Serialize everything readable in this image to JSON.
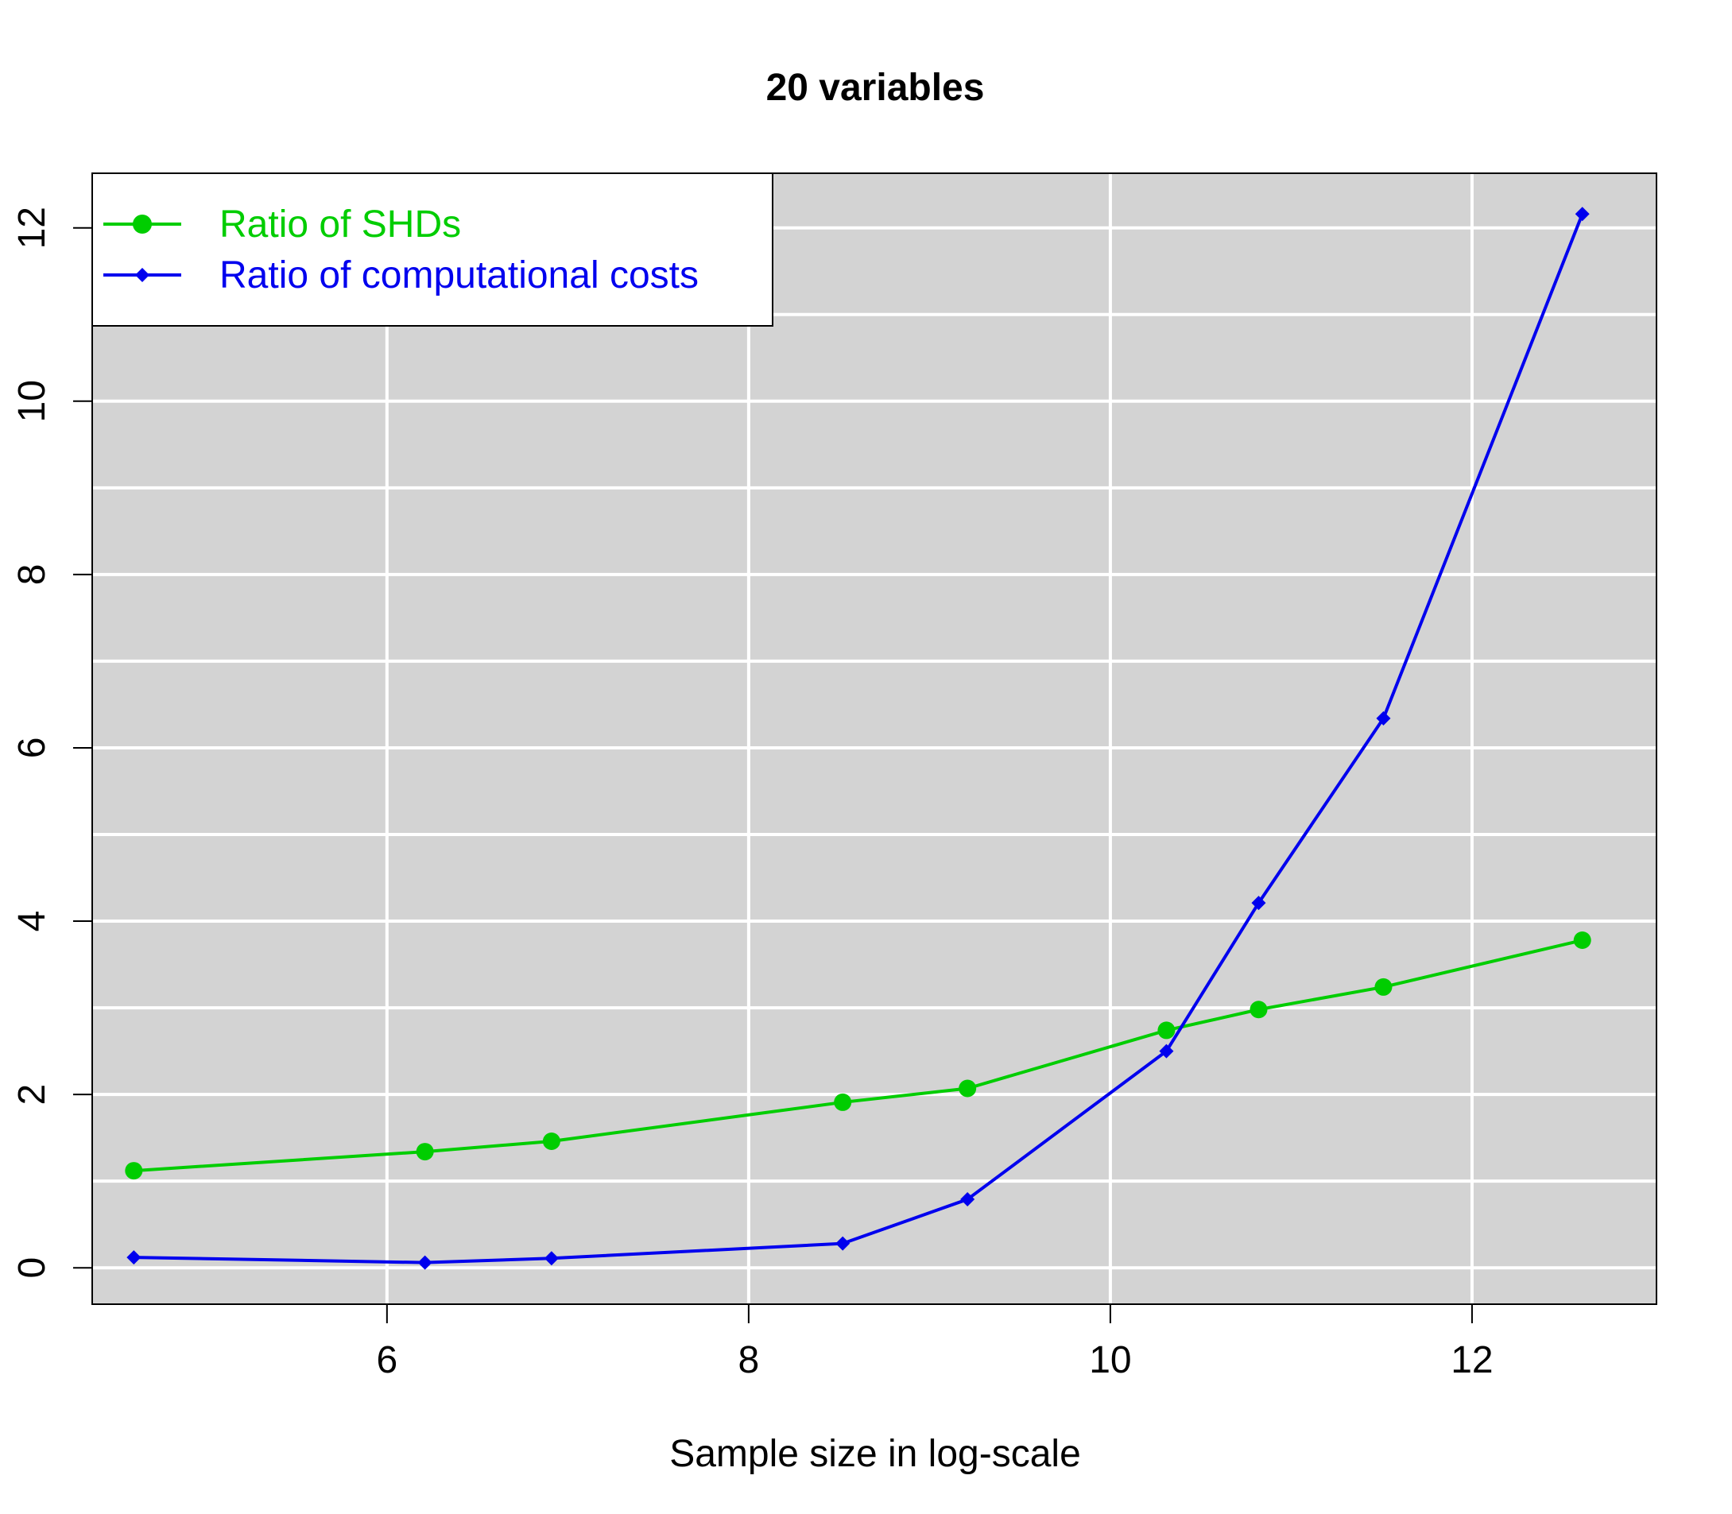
{
  "chart_data": {
    "type": "line",
    "title": "20 variables",
    "xlabel": "Sample size in log-scale",
    "ylabel": "",
    "xlim": [
      4.37,
      13.02
    ],
    "ylim": [
      -0.42,
      12.63
    ],
    "xticks": [
      6,
      8,
      10,
      12
    ],
    "xtick_labels": [
      "6",
      "8",
      "10",
      "12"
    ],
    "yticks": [
      0,
      2,
      4,
      6,
      8,
      10,
      12
    ],
    "ytick_labels": [
      "0",
      "2",
      "4",
      "6",
      "8",
      "10",
      "12"
    ],
    "grid": true,
    "grid_color": "#ffffff",
    "panel_background": "#d3d3d3",
    "legend_position": "top-left",
    "x": [
      4.6,
      6.21,
      6.91,
      8.52,
      9.21,
      10.31,
      10.82,
      11.51,
      12.61
    ],
    "series": [
      {
        "name": "Ratio of SHDs",
        "color": "#00cd00",
        "marker": "circle",
        "values": [
          1.12,
          1.34,
          1.46,
          1.91,
          2.07,
          2.74,
          2.98,
          3.24,
          3.78
        ]
      },
      {
        "name": "Ratio of computational costs",
        "color": "#0000ee",
        "marker": "diamond",
        "values": [
          0.12,
          0.06,
          0.11,
          0.28,
          0.79,
          2.5,
          4.21,
          6.34,
          12.16
        ]
      }
    ]
  }
}
